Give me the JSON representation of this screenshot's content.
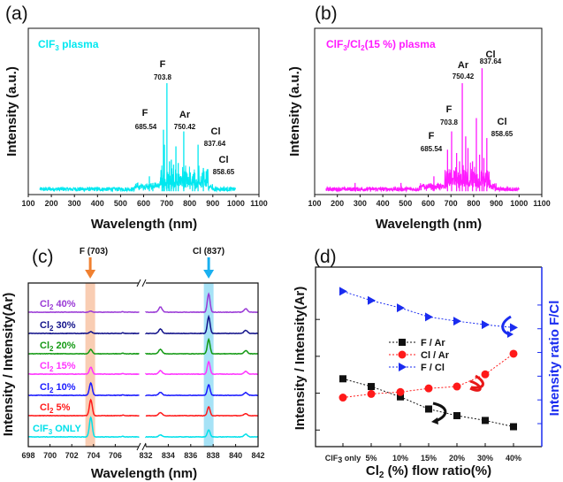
{
  "chart_data": [
    {
      "panel": "(a)",
      "type": "line",
      "legend_parts": [
        "ClF",
        "3",
        " plasma"
      ],
      "color": "#00e8f0",
      "xlabel": "Wavelength (nm)",
      "ylabel": "Intensity (a.u.)",
      "xlim": [
        100,
        1100
      ],
      "ylim": [
        0,
        1
      ],
      "xticks": [
        "100",
        "200",
        "300",
        "400",
        "500",
        "600",
        "700",
        "800",
        "900",
        "1000",
        "1100"
      ],
      "x_range_measured": [
        150,
        1000
      ],
      "peaks": [
        {
          "x": 625,
          "y": 0.11
        },
        {
          "x": 640,
          "y": 0.07
        },
        {
          "x": 680,
          "y": 0.1
        },
        {
          "x": 686,
          "y": 0.39
        },
        {
          "x": 690,
          "y": 0.3
        },
        {
          "x": 701,
          "y": 0.67
        },
        {
          "x": 712,
          "y": 0.2
        },
        {
          "x": 720,
          "y": 0.21
        },
        {
          "x": 730,
          "y": 0.18
        },
        {
          "x": 740,
          "y": 0.29
        },
        {
          "x": 750,
          "y": 0.19
        },
        {
          "x": 774,
          "y": 0.38
        },
        {
          "x": 812,
          "y": 0.11
        },
        {
          "x": 822,
          "y": 0.13
        },
        {
          "x": 836,
          "y": 0.3
        },
        {
          "x": 859,
          "y": 0.16
        },
        {
          "x": 912,
          "y": 0.05
        },
        {
          "x": 948,
          "y": 0.05
        }
      ],
      "annotations": [
        {
          "element": "F",
          "value": "703.8"
        },
        {
          "element": "F",
          "value": "685.54"
        },
        {
          "element": "Ar",
          "value": "750.42"
        },
        {
          "element": "Cl",
          "value": "837.64"
        },
        {
          "element": "Cl",
          "value": "858.65"
        }
      ]
    },
    {
      "panel": "(b)",
      "type": "line",
      "legend_parts": [
        "ClF",
        "3",
        "/Cl",
        "2",
        "(15 %) plasma"
      ],
      "color": "#ff1aff",
      "xlabel": "Wavelength (nm)",
      "ylabel": "Intensity (a.u.)",
      "xlim": [
        100,
        1100
      ],
      "ylim": [
        0,
        1
      ],
      "xticks": [
        "100",
        "200",
        "300",
        "400",
        "500",
        "600",
        "700",
        "800",
        "900",
        "1000",
        "1100"
      ],
      "x_range_measured": [
        150,
        1000
      ],
      "peaks": [
        {
          "x": 278,
          "y": 0.07
        },
        {
          "x": 480,
          "y": 0.07
        },
        {
          "x": 625,
          "y": 0.11
        },
        {
          "x": 685,
          "y": 0.27
        },
        {
          "x": 703,
          "y": 0.38
        },
        {
          "x": 725,
          "y": 0.25
        },
        {
          "x": 738,
          "y": 0.2
        },
        {
          "x": 750,
          "y": 0.67
        },
        {
          "x": 765,
          "y": 0.35
        },
        {
          "x": 775,
          "y": 0.28
        },
        {
          "x": 795,
          "y": 0.2
        },
        {
          "x": 812,
          "y": 0.46
        },
        {
          "x": 826,
          "y": 0.24
        },
        {
          "x": 837,
          "y": 0.76
        },
        {
          "x": 845,
          "y": 0.22
        },
        {
          "x": 858,
          "y": 0.34
        },
        {
          "x": 895,
          "y": 0.05
        },
        {
          "x": 948,
          "y": 0.05
        }
      ],
      "annotations": [
        {
          "element": "F",
          "value": "703.8"
        },
        {
          "element": "F",
          "value": "685.54"
        },
        {
          "element": "Ar",
          "value": "750.42"
        },
        {
          "element": "Cl",
          "value": "837.64"
        },
        {
          "element": "Cl",
          "value": "858.65"
        }
      ]
    },
    {
      "panel": "(c)",
      "type": "line",
      "xlabel": "Wavelength (nm)",
      "ylabel": "Intensity / Intensity(Ar)",
      "x_segments": [
        [
          698,
          708
        ],
        [
          832,
          842
        ]
      ],
      "xticks_left": [
        "698",
        "700",
        "702",
        "704",
        "706"
      ],
      "xticks_right": [
        "832",
        "834",
        "836",
        "838",
        "840",
        "842"
      ],
      "markers": [
        {
          "label": "F (703)",
          "x": 703.7,
          "color": "#f08030",
          "band_color": "#f9cdb3"
        },
        {
          "label": "Cl (837)",
          "x": 837.6,
          "color": "#1ab0f0",
          "band_color": "#a6e2f6"
        }
      ],
      "series": [
        {
          "name_parts": [
            "ClF",
            "3",
            " ONLY"
          ],
          "color": "#00e0ea",
          "F_703": 1.0,
          "Cl_837": 0.36,
          "Cl_833": 0.1,
          "peak_841": 0.14
        },
        {
          "name_parts": [
            "Cl",
            "2",
            " 5%"
          ],
          "color": "#ff1a1a",
          "F_703": 0.82,
          "Cl_837": 0.45,
          "Cl_833": 0.16,
          "peak_841": 0.1
        },
        {
          "name_parts": [
            "Cl",
            "2",
            " 10%"
          ],
          "color": "#1a1aff",
          "F_703": 0.64,
          "Cl_837": 0.55,
          "Cl_833": 0.16,
          "peak_841": 0.14
        },
        {
          "name_parts": [
            "Cl",
            "2",
            " 15%"
          ],
          "color": "#ff33ff",
          "F_703": 0.36,
          "Cl_837": 0.64,
          "Cl_833": 0.18,
          "peak_841": 0.14
        },
        {
          "name_parts": [
            "Cl",
            "2",
            " 20%"
          ],
          "color": "#139a13",
          "F_703": 0.23,
          "Cl_837": 0.73,
          "Cl_833": 0.23,
          "peak_841": 0.16
        },
        {
          "name_parts": [
            "Cl",
            "2",
            " 30%"
          ],
          "color": "#12128a",
          "F_703": 0.09,
          "Cl_837": 0.86,
          "Cl_833": 0.23,
          "peak_841": 0.16
        },
        {
          "name_parts": [
            "Cl",
            "2",
            " 40%"
          ],
          "color": "#9a3ad6",
          "F_703": 0.05,
          "Cl_837": 0.95,
          "Cl_833": 0.27,
          "peak_841": 0.18
        }
      ]
    },
    {
      "panel": "(d)",
      "type": "line",
      "categories": [
        "ClF3 only",
        "5%",
        "10%",
        "15%",
        "20%",
        "30%",
        "40%"
      ],
      "category_parts_first": [
        "ClF",
        "3",
        " only"
      ],
      "xlabel_parts": [
        "Cl",
        "2",
        " (%) flow ratio(%)"
      ],
      "ylabel_left": "Intensity / Intensity(Ar)",
      "ylabel_right": "Intensity ratio F/Cl",
      "right_axis_color": "#1a2cf0",
      "ylim_left": [
        0.55,
        5.42
      ],
      "ylim_right": [
        0.03,
        7.6
      ],
      "series": [
        {
          "name": "F / Ar",
          "axis": "left",
          "marker": "square",
          "color": "#111111",
          "values": [
            2.39,
            2.18,
            1.9,
            1.57,
            1.39,
            1.26,
            1.09
          ]
        },
        {
          "name": "Cl / Ar",
          "axis": "left",
          "marker": "circle",
          "color": "#ff1a1a",
          "values": [
            1.88,
            1.98,
            2.03,
            2.13,
            2.18,
            2.51,
            3.07
          ]
        },
        {
          "name": "F / Cl",
          "axis": "right",
          "marker": "triangle-right",
          "color": "#1a2cf0",
          "values": [
            6.58,
            6.19,
            5.88,
            5.5,
            5.32,
            5.17,
            5.05
          ]
        }
      ],
      "legend_position": "center-left"
    }
  ]
}
